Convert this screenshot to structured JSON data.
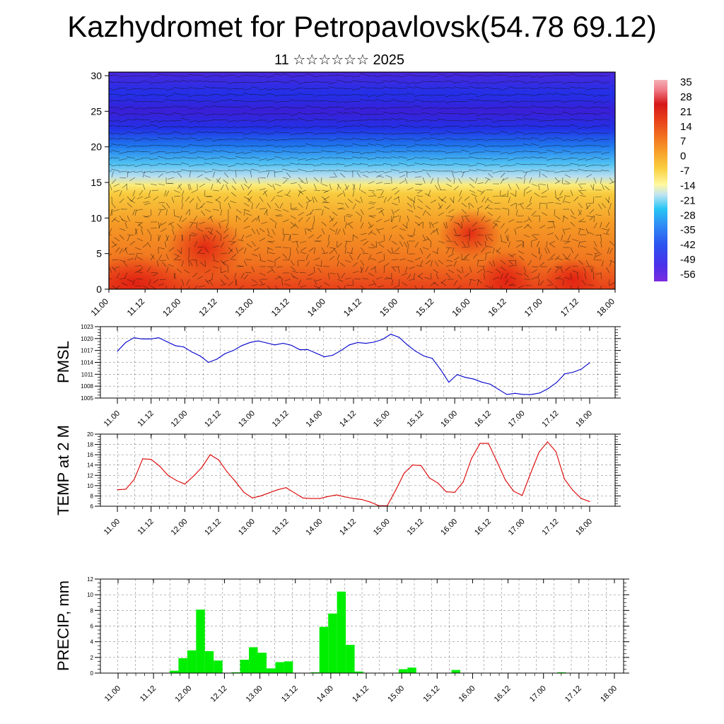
{
  "header": {
    "title": "Kazhydromet for Petropavlovsk(54.78 69.12)",
    "subtitle": "11 ☆☆☆☆☆☆ 2025"
  },
  "time_labels": [
    "11.00",
    "11.12",
    "12.00",
    "12.12",
    "13.00",
    "13.12",
    "14.00",
    "14.12",
    "15.00",
    "15.12",
    "16.00",
    "16.12",
    "17.00",
    "17.12",
    "18.00"
  ],
  "colors": {
    "pmsl_line": "#0000cc",
    "temp_line": "#dd0000",
    "precip_bar": "#00ee00"
  },
  "chart_data": [
    {
      "type": "heatmap",
      "title": "",
      "x_tick_labels": [
        "11.00",
        "11.12",
        "12.00",
        "12.12",
        "13.00",
        "13.12",
        "14.00",
        "14.12",
        "15.00",
        "15.12",
        "16.00",
        "16.12",
        "17.00",
        "17.12",
        "18.00"
      ],
      "y_ticks": [
        0,
        5,
        10,
        15,
        20,
        25,
        30
      ],
      "ylim": [
        0,
        30.5
      ],
      "colorbar": {
        "labels": [
          "35",
          "28",
          "21",
          "14",
          "7",
          "0",
          "-7",
          "-14",
          "-21",
          "-28",
          "-35",
          "-42",
          "-49",
          "-56"
        ],
        "range": [
          -63,
          42
        ]
      },
      "approx_levels": [
        {
          "y": 0,
          "value": 12
        },
        {
          "y": 5,
          "value": 8
        },
        {
          "y": 10,
          "value": 2
        },
        {
          "y": 14.5,
          "value": -6
        },
        {
          "y": 17,
          "value": -22
        },
        {
          "y": 20,
          "value": -36
        },
        {
          "y": 23,
          "value": -50
        },
        {
          "y": 27,
          "value": -58
        },
        {
          "y": 30.5,
          "value": -62
        }
      ],
      "overlay": "wind barbs"
    },
    {
      "type": "line",
      "ylabel": "PMSL",
      "ylim": [
        1005,
        1023
      ],
      "y_ticks": [
        1005,
        1008,
        1011,
        1014,
        1017,
        1020,
        1023
      ],
      "x_tick_labels": [
        "11.00",
        "11.12",
        "12.00",
        "12.12",
        "13.00",
        "13.12",
        "14.00",
        "14.12",
        "15.00",
        "15.12",
        "16.00",
        "16.12",
        "17.00",
        "17.12",
        "18.00"
      ],
      "values": [
        1016.8,
        1019.0,
        1020.2,
        1019.9,
        1019.9,
        1020.2,
        1019.2,
        1018.2,
        1017.9,
        1016.6,
        1015.6,
        1014.0,
        1014.8,
        1016.2,
        1017.0,
        1018.2,
        1019.0,
        1019.4,
        1018.9,
        1018.4,
        1018.8,
        1018.3,
        1017.2,
        1017.2,
        1016.3,
        1015.4,
        1015.8,
        1017.0,
        1018.4,
        1019.0,
        1018.8,
        1019.1,
        1019.8,
        1021.1,
        1020.3,
        1018.4,
        1016.8,
        1015.6,
        1015.0,
        1012.2,
        1009.0,
        1010.9,
        1010.2,
        1009.8,
        1009.0,
        1008.5,
        1007.2,
        1005.9,
        1006.2,
        1005.9,
        1005.9,
        1006.3,
        1007.4,
        1008.9,
        1011.1,
        1011.5,
        1012.3,
        1013.9
      ]
    },
    {
      "type": "line",
      "ylabel": "TEMP at 2 M",
      "ylim": [
        6,
        20
      ],
      "y_ticks": [
        6,
        8,
        10,
        12,
        14,
        16,
        18,
        20
      ],
      "x_tick_labels": [
        "11.00",
        "11.12",
        "12.00",
        "12.12",
        "13.00",
        "13.12",
        "14.00",
        "14.12",
        "15.00",
        "15.12",
        "16.00",
        "16.12",
        "17.00",
        "17.12",
        "18.00"
      ],
      "values": [
        9.2,
        9.3,
        11.2,
        15.2,
        15.1,
        13.8,
        12.0,
        11.0,
        10.3,
        11.8,
        13.5,
        16.0,
        15.0,
        12.7,
        10.8,
        8.7,
        7.6,
        8.0,
        8.6,
        9.2,
        9.6,
        8.6,
        7.6,
        7.5,
        7.5,
        7.9,
        8.2,
        7.8,
        7.5,
        7.3,
        6.8,
        6.1,
        6.1,
        9.1,
        12.4,
        14.0,
        13.9,
        11.5,
        10.5,
        8.8,
        8.7,
        10.7,
        15.3,
        18.2,
        18.2,
        14.7,
        11.1,
        8.9,
        8.1,
        12.4,
        16.5,
        18.5,
        16.6,
        11.3,
        9.1,
        7.5,
        6.9
      ]
    },
    {
      "type": "bar",
      "ylabel": "PRECIP, mm",
      "ylim": [
        0,
        12
      ],
      "y_ticks": [
        0,
        2,
        4,
        6,
        8,
        10,
        12
      ],
      "x_tick_labels": [
        "11.00",
        "11.12",
        "12.00",
        "12.12",
        "13.00",
        "13.12",
        "14.00",
        "14.12",
        "15.00",
        "15.12",
        "16.00",
        "16.12",
        "17.00",
        "17.12",
        "18.00"
      ],
      "values": [
        0,
        0,
        0,
        0,
        0,
        0,
        0,
        0.3,
        1.9,
        2.9,
        8.1,
        2.8,
        1.6,
        0,
        0.1,
        1.7,
        3.3,
        2.6,
        0.6,
        1.4,
        1.5,
        0,
        0,
        0.1,
        5.9,
        7.6,
        10.4,
        3.6,
        0.2,
        0,
        0,
        0,
        0,
        0.5,
        0.7,
        0,
        0,
        0,
        0,
        0.4,
        0,
        0,
        0,
        0,
        0,
        0,
        0,
        0,
        0,
        0,
        0,
        0.1,
        0,
        0,
        0,
        0,
        0,
        0
      ]
    }
  ]
}
